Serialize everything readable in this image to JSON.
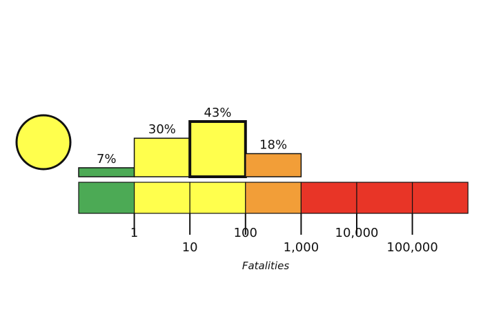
{
  "chart_data": {
    "type": "bar",
    "xlabel": "Fatalities",
    "alert_level_color": "#ffff4d",
    "categories": [
      "0-1",
      "1-10",
      "10-100",
      "100-1,000",
      "1,000-10,000",
      "10,000-100,000",
      "100,000+"
    ],
    "band_colors": [
      "#4caa55",
      "#ffff4d",
      "#ffff4d",
      "#f29e38",
      "#e83527",
      "#e83527",
      "#e83527"
    ],
    "bars": [
      {
        "category": "0-1",
        "value": 7,
        "label": "7%",
        "color": "#4caa55",
        "highlighted": false
      },
      {
        "category": "1-10",
        "value": 30,
        "label": "30%",
        "color": "#ffff4d",
        "highlighted": false
      },
      {
        "category": "10-100",
        "value": 43,
        "label": "43%",
        "color": "#ffff4d",
        "highlighted": true
      },
      {
        "category": "100-1,000",
        "value": 18,
        "label": "18%",
        "color": "#f29e38",
        "highlighted": false
      }
    ],
    "tick_labels": [
      {
        "text": "1",
        "row": 1
      },
      {
        "text": "10",
        "row": 2
      },
      {
        "text": "100",
        "row": 1
      },
      {
        "text": "1,000",
        "row": 2
      },
      {
        "text": "10,000",
        "row": 1
      },
      {
        "text": "100,000",
        "row": 2
      }
    ]
  }
}
